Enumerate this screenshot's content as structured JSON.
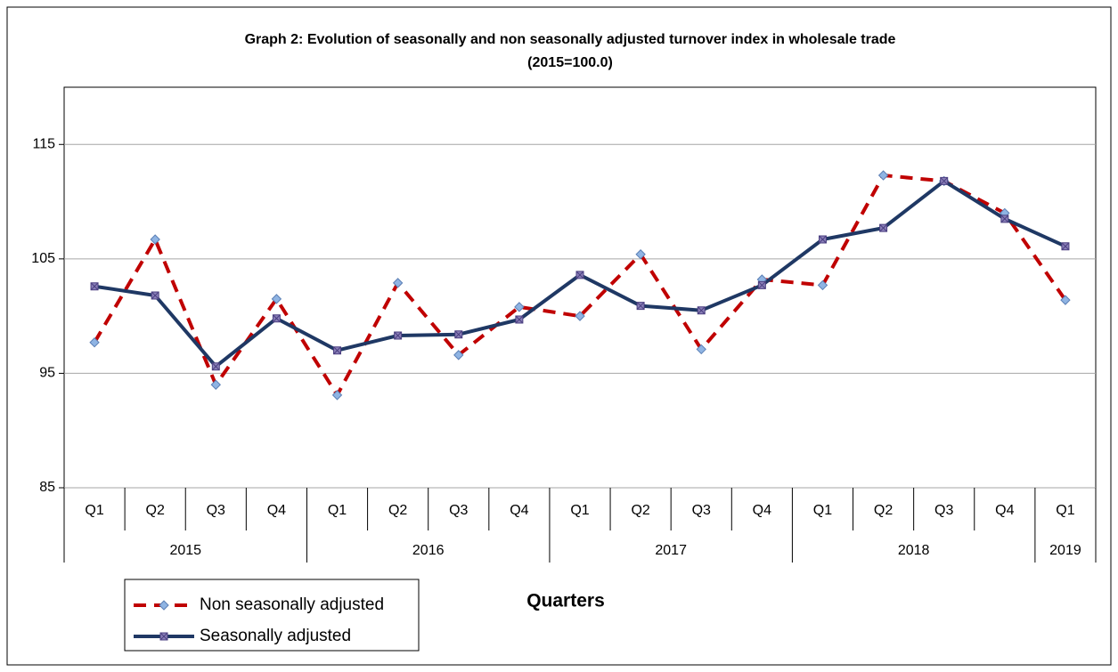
{
  "chart_data": {
    "type": "line",
    "title": "Graph 2: Evolution of seasonally and non seasonally adjusted  turnover index in wholesale trade",
    "subtitle": "(2015=100.0)",
    "x_label": "Quarters",
    "categories": [
      "Q1",
      "Q2",
      "Q3",
      "Q4",
      "Q1",
      "Q2",
      "Q3",
      "Q4",
      "Q1",
      "Q2",
      "Q3",
      "Q4",
      "Q1",
      "Q2",
      "Q3",
      "Q4",
      "Q1"
    ],
    "category_years": [
      "2015",
      null,
      null,
      null,
      "2016",
      null,
      null,
      null,
      "2017",
      null,
      null,
      null,
      "2018",
      null,
      null,
      null,
      "2019"
    ],
    "series": [
      {
        "name": "Non seasonally adjusted",
        "color": "#c00000",
        "marker_color": "#8fb4e3",
        "values": [
          97.7,
          106.7,
          94.0,
          101.5,
          93.1,
          102.9,
          96.6,
          100.8,
          100.0,
          105.4,
          97.1,
          103.2,
          102.7,
          112.3,
          111.8,
          109.0,
          101.4
        ]
      },
      {
        "name": "Seasonally adjusted",
        "color": "#1f3864",
        "marker_color": "#8a7fb8",
        "values": [
          102.6,
          101.8,
          95.6,
          99.8,
          97.0,
          98.3,
          98.4,
          99.7,
          103.6,
          100.9,
          100.5,
          102.7,
          106.7,
          107.7,
          111.8,
          108.5,
          106.1
        ]
      }
    ],
    "ylim": [
      85,
      120
    ],
    "yticks": [
      85,
      95,
      105,
      115
    ],
    "grid": true
  }
}
